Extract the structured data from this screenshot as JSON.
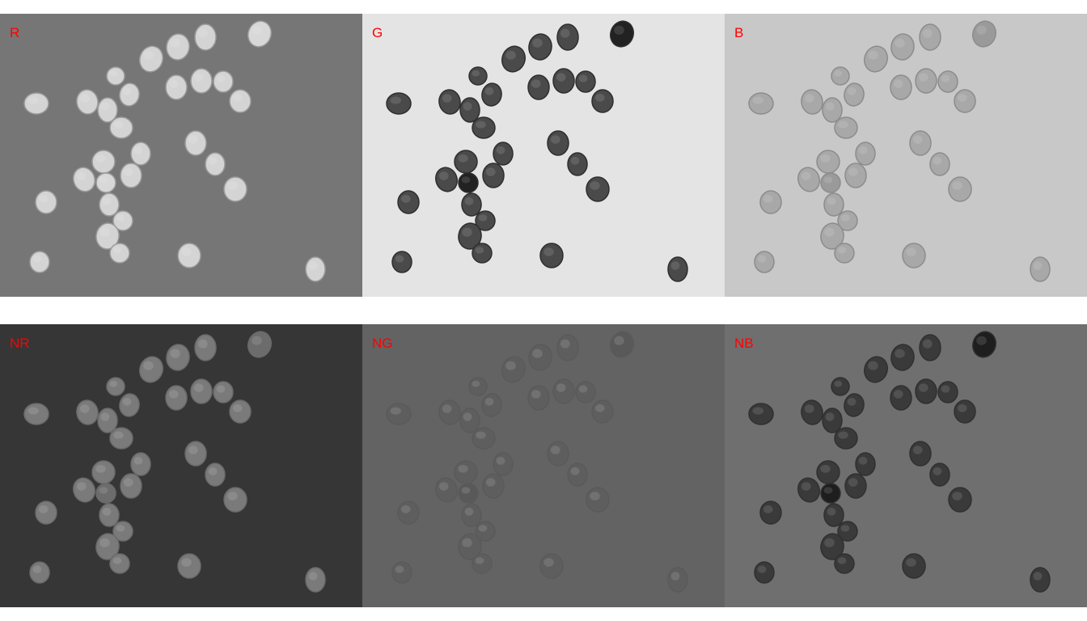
{
  "label_color": "#ff0000",
  "panels": [
    {
      "id": "r",
      "label": "R",
      "bg": "#767676",
      "bean": "#d4d4d4",
      "edge": "#9a9a9a",
      "dark_bean": "#d8d8d8"
    },
    {
      "id": "g",
      "label": "G",
      "bg": "#e4e4e4",
      "bean": "#4a4a4a",
      "edge": "#2e2e2e",
      "dark_bean": "#222222"
    },
    {
      "id": "b",
      "label": "B",
      "bg": "#c8c8c8",
      "bean": "#a8a8a8",
      "edge": "#8c8c8c",
      "dark_bean": "#9a9a9a"
    },
    {
      "id": "nr",
      "label": "NR",
      "bg": "#363636",
      "bean": "#7a7a7a",
      "edge": "#6a6a6a",
      "dark_bean": "#6c6c6c"
    },
    {
      "id": "ng",
      "label": "NG",
      "bg": "#636363",
      "bean": "#5e5e5e",
      "edge": "#5a5a5a",
      "dark_bean": "#595959"
    },
    {
      "id": "nb",
      "label": "NB",
      "bg": "#6f6f6f",
      "bean": "#3a3a3a",
      "edge": "#303030",
      "dark_bean": "#1e1e1e"
    }
  ]
}
